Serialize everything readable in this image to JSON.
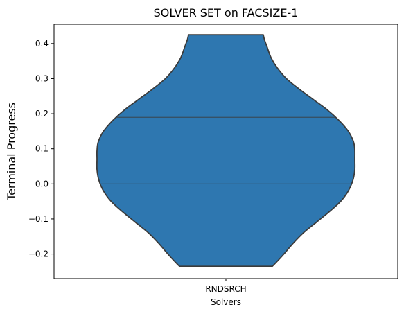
{
  "chart_data": {
    "type": "violin",
    "title": "SOLVER SET on FACSIZE-1",
    "xlabel": "Solvers",
    "ylabel": "Terminal Progress",
    "categories": [
      "RNDSRCH"
    ],
    "ylim": [
      -0.27,
      0.455
    ],
    "yticks": [
      -0.2,
      -0.1,
      0.0,
      0.1,
      0.2,
      0.3,
      0.4
    ],
    "ytick_labels": [
      "−0.2",
      "−0.1",
      "0.0",
      "0.1",
      "0.2",
      "0.3",
      "0.4"
    ],
    "grid": false,
    "series": [
      {
        "category": "RNDSRCH",
        "min": -0.235,
        "max": 0.425,
        "quartile_lines": [
          0.0,
          0.19
        ],
        "density": [
          [
            -0.235,
            0.36
          ],
          [
            -0.22,
            0.4
          ],
          [
            -0.2,
            0.45
          ],
          [
            -0.17,
            0.52
          ],
          [
            -0.14,
            0.6
          ],
          [
            -0.11,
            0.7
          ],
          [
            -0.08,
            0.8
          ],
          [
            -0.05,
            0.89
          ],
          [
            -0.02,
            0.95
          ],
          [
            0.01,
            0.985
          ],
          [
            0.04,
            1.0
          ],
          [
            0.07,
            1.0
          ],
          [
            0.095,
            1.0
          ],
          [
            0.12,
            0.99
          ],
          [
            0.15,
            0.95
          ],
          [
            0.18,
            0.88
          ],
          [
            0.21,
            0.79
          ],
          [
            0.24,
            0.68
          ],
          [
            0.27,
            0.57
          ],
          [
            0.3,
            0.47
          ],
          [
            0.33,
            0.4
          ],
          [
            0.36,
            0.35
          ],
          [
            0.39,
            0.32
          ],
          [
            0.41,
            0.3
          ],
          [
            0.425,
            0.29
          ]
        ]
      }
    ],
    "colors": {
      "fill": "#2e77b0",
      "edge": "#3b3b3b",
      "axes": "#000000"
    }
  }
}
